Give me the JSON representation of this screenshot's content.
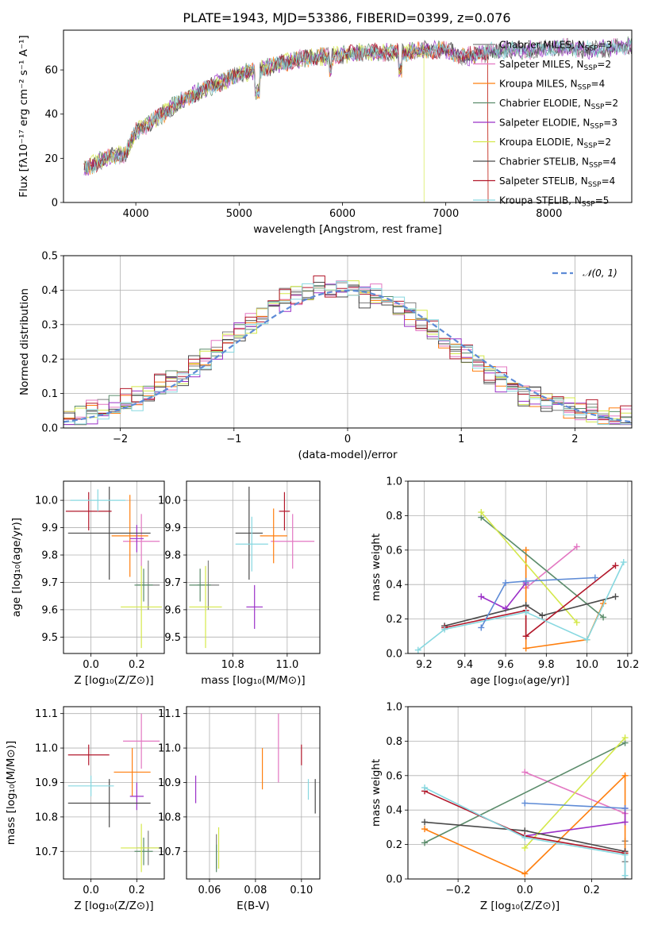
{
  "title": "PLATE=1943, MJD=53386, FIBERID=0399, z=0.076",
  "colors": {
    "Chabrier MILES": "#7f7f7f",
    "Salpeter MILES": "#e377c2",
    "Kroupa MILES": "#ff7f0e",
    "Chabrier ELODIE": "#5b8c6b",
    "Salpeter ELODIE": "#9b30c8",
    "Kroupa ELODIE": "#d4e84a",
    "Chabrier STELIB": "#4a4a4a",
    "Salpeter STELIB": "#b2182b",
    "Kroupa STELIB": "#87d8e0",
    "gaussian": "#5e8bd6"
  },
  "chart_data": [
    {
      "type": "line",
      "title": "PLATE=1943, MJD=53386, FIBERID=0399, z=0.076",
      "xlabel": "wavelength [Angstrom, rest frame]",
      "ylabel": "Flux [fλ10⁻¹⁷ erg cm⁻² s⁻¹ A⁻¹]",
      "xlim": [
        3300,
        8800
      ],
      "ylim": [
        0,
        78
      ],
      "xticks": [
        4000,
        5000,
        6000,
        7000,
        8000
      ],
      "yticks": [
        0,
        20,
        40,
        60
      ],
      "grid": false,
      "legend_position": "top-right",
      "x": [
        3500,
        3700,
        3900,
        4000,
        4200,
        4400,
        4600,
        4800,
        5000,
        5200,
        5400,
        5600,
        5800,
        6000,
        6200,
        6400,
        6600,
        6800,
        7000,
        7200,
        7400,
        7600,
        7800,
        8000,
        8200,
        8400,
        8600,
        8800
      ],
      "y": [
        15,
        20,
        22,
        32,
        38,
        45,
        50,
        54,
        58,
        60,
        63,
        65,
        66,
        67,
        68,
        68,
        68,
        69,
        69,
        66,
        68,
        69,
        69,
        70,
        70,
        69,
        70,
        71
      ],
      "legend": [
        {
          "name": "Chabrier MILES, N",
          "sub": "SSP",
          "suffix": "=3"
        },
        {
          "name": "Salpeter MILES, N",
          "sub": "SSP",
          "suffix": "=2"
        },
        {
          "name": "Kroupa MILES, N",
          "sub": "SSP",
          "suffix": "=4"
        },
        {
          "name": "Chabrier ELODIE, N",
          "sub": "SSP",
          "suffix": "=2"
        },
        {
          "name": "Salpeter ELODIE, N",
          "sub": "SSP",
          "suffix": "=3"
        },
        {
          "name": "Kroupa ELODIE, N",
          "sub": "SSP",
          "suffix": "=2"
        },
        {
          "name": "Chabrier STELIB, N",
          "sub": "SSP",
          "suffix": "=4"
        },
        {
          "name": "Salpeter STELIB, N",
          "sub": "SSP",
          "suffix": "=4"
        },
        {
          "name": "Kroupa STELIB, N",
          "sub": "SSP",
          "suffix": "=5"
        }
      ]
    },
    {
      "type": "histogram",
      "xlabel": "(data-model)/error",
      "ylabel": "Normed distribution",
      "xlim": [
        -2.5,
        2.5
      ],
      "ylim": [
        0,
        0.5
      ],
      "xticks": [
        -2,
        -1,
        0,
        1,
        2
      ],
      "yticks": [
        0.0,
        0.1,
        0.2,
        0.3,
        0.4,
        0.5
      ],
      "grid": true,
      "gaussian_label": "𝒩(0, 1)",
      "bin_centers": [
        -2.45,
        -2.35,
        -2.25,
        -2.15,
        -2.05,
        -1.95,
        -1.85,
        -1.75,
        -1.65,
        -1.55,
        -1.45,
        -1.35,
        -1.25,
        -1.15,
        -1.05,
        -0.95,
        -0.85,
        -0.75,
        -0.65,
        -0.55,
        -0.45,
        -0.35,
        -0.25,
        -0.15,
        -0.05,
        0.05,
        0.15,
        0.25,
        0.35,
        0.45,
        0.55,
        0.65,
        0.75,
        0.85,
        0.95,
        1.05,
        1.15,
        1.25,
        1.35,
        1.45,
        1.55,
        1.65,
        1.75,
        1.85,
        1.95,
        2.05,
        2.15,
        2.25,
        2.35,
        2.45
      ],
      "values": [
        0.025,
        0.03,
        0.045,
        0.05,
        0.06,
        0.075,
        0.085,
        0.1,
        0.12,
        0.14,
        0.16,
        0.18,
        0.2,
        0.22,
        0.25,
        0.28,
        0.3,
        0.33,
        0.36,
        0.37,
        0.39,
        0.4,
        0.41,
        0.4,
        0.4,
        0.39,
        0.39,
        0.38,
        0.37,
        0.35,
        0.33,
        0.31,
        0.28,
        0.25,
        0.23,
        0.21,
        0.18,
        0.16,
        0.14,
        0.12,
        0.1,
        0.09,
        0.08,
        0.07,
        0.06,
        0.05,
        0.045,
        0.04,
        0.03,
        0.025
      ],
      "series_offsets": [
        0.0,
        0.012,
        -0.01,
        0.018,
        -0.015,
        0.008,
        -0.02,
        0.015,
        -0.005
      ]
    },
    {
      "type": "scatter",
      "panel": "age-vs-Z",
      "xlabel": "Z [log₁₀(Z/Z⊙)]",
      "ylabel": "age  [log₁₀(age/yr)]",
      "xlim": [
        -0.12,
        0.32
      ],
      "ylim": [
        9.44,
        10.07
      ],
      "xticks": [
        0.0,
        0.2
      ],
      "yticks": [
        9.5,
        9.6,
        9.7,
        9.8,
        9.9,
        10.0
      ],
      "grid": true,
      "points": [
        {
          "s": "Chabrier MILES",
          "x": 0.25,
          "y": 9.69,
          "xe": 0.05,
          "ye": 0.09
        },
        {
          "s": "Salpeter MILES",
          "x": 0.22,
          "y": 9.85,
          "xe": 0.08,
          "ye": 0.1
        },
        {
          "s": "Kroupa MILES",
          "x": 0.17,
          "y": 9.87,
          "xe": 0.08,
          "ye": 0.15
        },
        {
          "s": "Chabrier ELODIE",
          "x": 0.23,
          "y": 9.69,
          "xe": 0.04,
          "ye": 0.06
        },
        {
          "s": "Salpeter ELODIE",
          "x": 0.2,
          "y": 9.86,
          "xe": 0.03,
          "ye": 0.05
        },
        {
          "s": "Kroupa ELODIE",
          "x": 0.22,
          "y": 9.61,
          "xe": 0.09,
          "ye": 0.15
        },
        {
          "s": "Chabrier STELIB",
          "x": 0.08,
          "y": 9.88,
          "xe": 0.18,
          "ye": 0.17
        },
        {
          "s": "Salpeter STELIB",
          "x": -0.01,
          "y": 9.96,
          "xe": 0.1,
          "ye": 0.07
        },
        {
          "s": "Kroupa STELIB",
          "x": 0.03,
          "y": 10.0,
          "xe": 0.12,
          "ye": 0.04
        }
      ]
    },
    {
      "type": "scatter",
      "panel": "age-vs-mass",
      "xlabel": "mass [log₁₀(M/M⊙)]",
      "ylabel": "",
      "xlim": [
        10.63,
        11.12
      ],
      "ylim": [
        9.44,
        10.07
      ],
      "xticks": [
        10.8,
        11.0
      ],
      "yticks": [
        9.5,
        9.6,
        9.7,
        9.8,
        9.9,
        10.0
      ],
      "grid": true,
      "points": [
        {
          "s": "Chabrier MILES",
          "x": 10.71,
          "y": 9.69,
          "xe": 0.04,
          "ye": 0.09
        },
        {
          "s": "Salpeter MILES",
          "x": 11.02,
          "y": 9.85,
          "xe": 0.08,
          "ye": 0.1
        },
        {
          "s": "Kroupa MILES",
          "x": 10.95,
          "y": 9.87,
          "xe": 0.05,
          "ye": 0.1
        },
        {
          "s": "Chabrier ELODIE",
          "x": 10.68,
          "y": 9.69,
          "xe": 0.04,
          "ye": 0.06
        },
        {
          "s": "Salpeter ELODIE",
          "x": 10.88,
          "y": 9.61,
          "xe": 0.03,
          "ye": 0.08
        },
        {
          "s": "Kroupa ELODIE",
          "x": 10.7,
          "y": 9.61,
          "xe": 0.06,
          "ye": 0.15
        },
        {
          "s": "Chabrier STELIB",
          "x": 10.86,
          "y": 9.88,
          "xe": 0.05,
          "ye": 0.17
        },
        {
          "s": "Salpeter STELIB",
          "x": 10.99,
          "y": 9.96,
          "xe": 0.02,
          "ye": 0.07
        },
        {
          "s": "Kroupa STELIB",
          "x": 10.87,
          "y": 9.84,
          "xe": 0.06,
          "ye": 0.1
        }
      ]
    },
    {
      "type": "line",
      "panel": "mass-weight-vs-age",
      "xlabel": "age  [log₁₀(age/yr)]",
      "ylabel": "mass weight",
      "xlim": [
        9.12,
        10.22
      ],
      "ylim": [
        0,
        1.0
      ],
      "xticks": [
        9.2,
        9.4,
        9.6,
        9.8,
        10.0,
        10.2
      ],
      "yticks": [
        0.0,
        0.2,
        0.4,
        0.6,
        0.8,
        1.0
      ],
      "grid": true,
      "series": [
        {
          "s": "Chabrier MILES",
          "x": [
            9.7,
            9.7,
            9.7
          ],
          "y": [
            0.6,
            0.4,
            0.1
          ]
        },
        {
          "s": "Salpeter MILES",
          "x": [
            9.7,
            9.95
          ],
          "y": [
            0.38,
            0.62
          ]
        },
        {
          "s": "Kroupa MILES",
          "x": [
            9.7,
            9.7,
            10.0,
            10.08
          ],
          "y": [
            0.6,
            0.03,
            0.08,
            0.29
          ]
        },
        {
          "s": "Chabrier ELODIE",
          "x": [
            9.48,
            10.08
          ],
          "y": [
            0.79,
            0.21
          ]
        },
        {
          "s": "Salpeter ELODIE",
          "x": [
            9.48,
            9.6,
            9.7
          ],
          "y": [
            0.33,
            0.26,
            0.41
          ]
        },
        {
          "s": "Kroupa ELODIE",
          "x": [
            9.48,
            9.95
          ],
          "y": [
            0.82,
            0.18
          ]
        },
        {
          "s": "Chabrier STELIB",
          "x": [
            9.3,
            9.7,
            9.78,
            10.14
          ],
          "y": [
            0.16,
            0.28,
            0.22,
            0.33
          ]
        },
        {
          "s": "Salpeter STELIB",
          "x": [
            9.3,
            9.7,
            9.7,
            10.14
          ],
          "y": [
            0.15,
            0.25,
            0.1,
            0.51
          ]
        },
        {
          "s": "Kroupa STELIB",
          "x": [
            9.17,
            9.3,
            9.7,
            10.0,
            10.18
          ],
          "y": [
            0.02,
            0.14,
            0.24,
            0.08,
            0.53
          ]
        },
        {
          "s": "gaussian",
          "x": [
            9.48,
            9.6,
            9.7,
            10.04
          ],
          "y": [
            0.15,
            0.41,
            0.42,
            0.44
          ]
        }
      ]
    },
    {
      "type": "scatter",
      "panel": "mass-vs-Z",
      "xlabel": "Z [log₁₀(Z/Z⊙)]",
      "ylabel": "mass [log₁₀(M/M⊙)]",
      "xlim": [
        -0.12,
        0.32
      ],
      "ylim": [
        10.62,
        11.12
      ],
      "xticks": [
        0.0,
        0.2
      ],
      "yticks": [
        10.7,
        10.8,
        10.9,
        11.0,
        11.1
      ],
      "grid": true,
      "points": [
        {
          "s": "Chabrier MILES",
          "x": 0.25,
          "y": 10.71,
          "xe": 0.05,
          "ye": 0.05
        },
        {
          "s": "Salpeter MILES",
          "x": 0.22,
          "y": 11.02,
          "xe": 0.08,
          "ye": 0.08
        },
        {
          "s": "Kroupa MILES",
          "x": 0.18,
          "y": 10.93,
          "xe": 0.08,
          "ye": 0.07
        },
        {
          "s": "Chabrier ELODIE",
          "x": 0.23,
          "y": 10.7,
          "xe": 0.04,
          "ye": 0.04
        },
        {
          "s": "Salpeter ELODIE",
          "x": 0.2,
          "y": 10.86,
          "xe": 0.03,
          "ye": 0.04
        },
        {
          "s": "Kroupa ELODIE",
          "x": 0.22,
          "y": 10.71,
          "xe": 0.09,
          "ye": 0.07
        },
        {
          "s": "Chabrier STELIB",
          "x": 0.08,
          "y": 10.84,
          "xe": 0.18,
          "ye": 0.07
        },
        {
          "s": "Salpeter STELIB",
          "x": -0.01,
          "y": 10.98,
          "xe": 0.09,
          "ye": 0.03
        },
        {
          "s": "Kroupa STELIB",
          "x": 0.0,
          "y": 10.89,
          "xe": 0.1,
          "ye": 0.03
        }
      ]
    },
    {
      "type": "scatter",
      "panel": "mass-vs-ebv",
      "xlabel": "E(B-V)",
      "ylabel": "",
      "xlim": [
        0.05,
        0.108
      ],
      "ylim": [
        10.62,
        11.12
      ],
      "xticks": [
        0.06,
        0.08,
        0.1
      ],
      "yticks": [
        10.7,
        10.8,
        10.9,
        11.0,
        11.1
      ],
      "grid": true,
      "points": [
        {
          "s": "Chabrier MILES",
          "x": 0.063,
          "y": 10.7,
          "ye": 0.05
        },
        {
          "s": "Salpeter MILES",
          "x": 0.09,
          "y": 11.0,
          "ye": 0.1
        },
        {
          "s": "Kroupa MILES",
          "x": 0.083,
          "y": 10.94,
          "ye": 0.06
        },
        {
          "s": "Chabrier ELODIE",
          "x": 0.063,
          "y": 10.68,
          "ye": 0.04
        },
        {
          "s": "Salpeter ELODIE",
          "x": 0.054,
          "y": 10.88,
          "ye": 0.04
        },
        {
          "s": "Kroupa ELODIE",
          "x": 0.064,
          "y": 10.71,
          "ye": 0.06
        },
        {
          "s": "Chabrier STELIB",
          "x": 0.106,
          "y": 10.86,
          "ye": 0.05
        },
        {
          "s": "Salpeter STELIB",
          "x": 0.1,
          "y": 10.98,
          "ye": 0.03
        },
        {
          "s": "Kroupa STELIB",
          "x": 0.103,
          "y": 10.88,
          "ye": 0.03
        }
      ]
    },
    {
      "type": "line",
      "panel": "mass-weight-vs-Z",
      "xlabel": "Z [log₁₀(Z/Z⊙)]",
      "ylabel": "mass weight",
      "xlim": [
        -0.35,
        0.32
      ],
      "ylim": [
        0,
        1.0
      ],
      "xticks": [
        -0.2,
        0.0,
        0.2
      ],
      "yticks": [
        0.0,
        0.2,
        0.4,
        0.6,
        0.8,
        1.0
      ],
      "grid": true,
      "series": [
        {
          "s": "Chabrier MILES",
          "x": [
            0.3,
            0.3,
            0.3
          ],
          "y": [
            0.22,
            0.1,
            0.0
          ]
        },
        {
          "s": "Salpeter MILES",
          "x": [
            0.0,
            0.3
          ],
          "y": [
            0.62,
            0.38
          ]
        },
        {
          "s": "Kroupa MILES",
          "x": [
            -0.3,
            0.0,
            0.3,
            0.3
          ],
          "y": [
            0.29,
            0.03,
            0.6,
            0.15
          ]
        },
        {
          "s": "Chabrier ELODIE",
          "x": [
            -0.3,
            0.3
          ],
          "y": [
            0.21,
            0.79
          ]
        },
        {
          "s": "Salpeter ELODIE",
          "x": [
            0.0,
            0.3,
            0.3
          ],
          "y": [
            0.25,
            0.33,
            0.41
          ]
        },
        {
          "s": "Kroupa ELODIE",
          "x": [
            0.0,
            0.3
          ],
          "y": [
            0.18,
            0.82
          ]
        },
        {
          "s": "Chabrier STELIB",
          "x": [
            -0.3,
            0.0,
            0.3
          ],
          "y": [
            0.33,
            0.28,
            0.16
          ]
        },
        {
          "s": "Salpeter STELIB",
          "x": [
            -0.3,
            0.0,
            0.3
          ],
          "y": [
            0.51,
            0.25,
            0.15
          ]
        },
        {
          "s": "Kroupa STELIB",
          "x": [
            -0.3,
            0.0,
            0.3,
            0.3
          ],
          "y": [
            0.53,
            0.24,
            0.14,
            0.02
          ]
        },
        {
          "s": "gaussian",
          "x": [
            0.0,
            0.3
          ],
          "y": [
            0.44,
            0.41
          ]
        }
      ]
    }
  ]
}
